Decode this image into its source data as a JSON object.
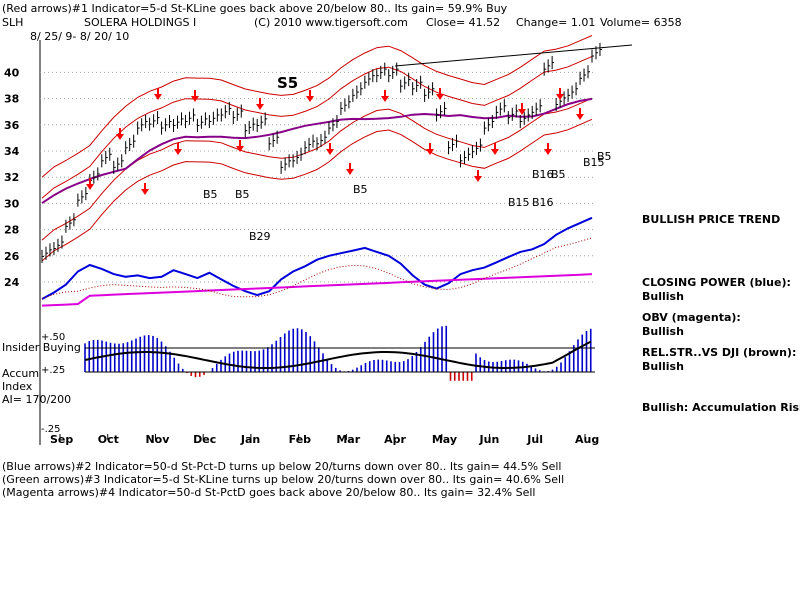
{
  "header": {
    "line1": "(Red arrows)#1 Indicator=5-d St-KLine goes back above 20/below 80.. Its gain= 59.9% Buy",
    "ticker": "SLH",
    "company": "SOLERA HOLDINGS I",
    "copyright": "(C) 2010 www.tigersoft.com",
    "close": "Close=  41.52",
    "change": "Change= 1.01",
    "volume": "Volume= 6358",
    "daterange": "8/ 25/ 9-  8/ 20/ 10"
  },
  "footer": {
    "line1": "(Blue arrows)#2 Indicator=50-d St-Pct-D turns up below 20/turns down over 80.. Its gain= 44.5% Sell",
    "line2": "(Green arrows)#3 Indicator=5-d St-KLine turns up below 20/turns down over 80.. Its gain= 40.6% Sell",
    "line3": "(Magenta arrows)#4 Indicator=50-d St-PctD goes back above 20/below 80.. Its gain= 32.4% Sell"
  },
  "side": {
    "trend": "BULLISH PRICE TREND",
    "cp_label": "CLOSING POWER (blue):",
    "cp_val": "Bullish",
    "obv_label": "OBV (magenta):",
    "obv_val": "Bullish",
    "rs_label": "REL.STR..VS DJI (brown):",
    "rs_val": "Bullish",
    "accum": "Bullish: Accumulation Rising"
  },
  "lower": {
    "insider": "Insider Buying",
    "accum1": "Accum",
    "accum2": "Index",
    "ai": "AI= 170/200",
    "p50": "+.50",
    "p25": "+.25",
    "m25": "-.25"
  },
  "colors": {
    "price": "#000000",
    "bands": "#cc0000",
    "ma": "#880088",
    "closing_power": "#0000dd",
    "obv": "#dd00dd",
    "rel_strength": "#aa0000",
    "accum": "#0000cc",
    "accum_neg": "#cc0000",
    "buy_arrow": "#ff0000"
  },
  "chart_data": {
    "type": "line",
    "title": "SOLERA HOLDINGS I",
    "ylim": [
      24,
      42
    ],
    "y_ticks": [
      24,
      26,
      28,
      30,
      32,
      34,
      36,
      38,
      40
    ],
    "months": [
      "Sep",
      "Oct",
      "Nov",
      "Dec",
      "Jan",
      "Feb",
      "Mar",
      "Apr",
      "May",
      "Jun",
      "Jul",
      "Aug"
    ],
    "price_close": [
      26.2,
      26.8,
      28.5,
      30.5,
      32.0,
      33.5,
      33.0,
      34.5,
      36.0,
      36.3,
      36.0,
      36.2,
      36.5,
      36.2,
      36.5,
      37.0,
      36.8,
      35.8,
      36.2,
      34.8,
      33.0,
      33.5,
      34.5,
      34.8,
      36.0,
      37.5,
      38.5,
      39.5,
      40.0,
      40.0,
      39.2,
      39.0,
      38.5,
      37.0,
      34.5,
      33.5,
      34.2,
      36.0,
      37.2,
      36.8,
      36.5,
      37.2,
      40.5,
      37.8,
      38.5,
      39.8,
      41.5
    ],
    "annotations": [
      "S5",
      "B5",
      "B5",
      "B5",
      "B29",
      "B15",
      "B16",
      "B16",
      "B5",
      "B15",
      "B5"
    ]
  }
}
